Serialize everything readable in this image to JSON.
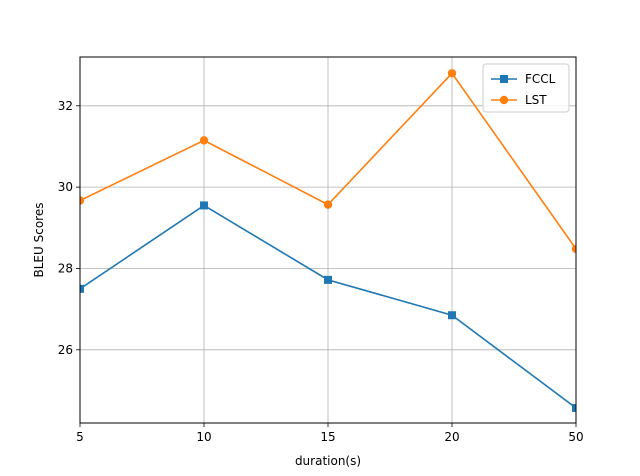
{
  "chart_data": {
    "type": "line",
    "categories": [
      "5",
      "10",
      "15",
      "20",
      "50"
    ],
    "xlabel": "duration(s)",
    "ylabel": "BLEU Scores",
    "ylim": [
      24.2,
      33.2
    ],
    "yticks": [
      26,
      28,
      30,
      32
    ],
    "grid": true,
    "legend_position": "top-right",
    "series": [
      {
        "name": "FCCL",
        "color": "#1f77b4",
        "marker": "square",
        "values": [
          27.5,
          29.55,
          27.72,
          26.85,
          24.57
        ]
      },
      {
        "name": "LST",
        "color": "#ff7f0e",
        "marker": "circle",
        "values": [
          29.67,
          31.15,
          29.57,
          32.8,
          28.48
        ]
      }
    ]
  }
}
